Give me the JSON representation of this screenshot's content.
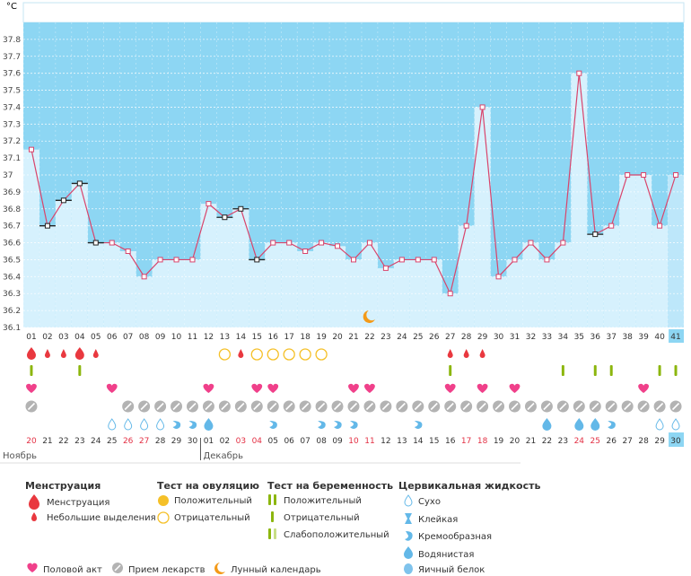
{
  "chart_data": {
    "type": "line",
    "ylabel": "°C",
    "ylim": [
      36.1,
      37.9
    ],
    "yticks": [
      "36.1",
      "36.2",
      "36.3",
      "36.4",
      "36.5",
      "36.6",
      "36.7",
      "36.8",
      "36.9",
      "37",
      "37.1",
      "37.2",
      "37.3",
      "37.4",
      "37.5",
      "37.6",
      "37.7",
      "37.8"
    ],
    "cycle_days": [
      "01",
      "02",
      "03",
      "04",
      "05",
      "06",
      "07",
      "08",
      "09",
      "10",
      "11",
      "12",
      "13",
      "14",
      "15",
      "16",
      "17",
      "18",
      "19",
      "20",
      "21",
      "22",
      "23",
      "24",
      "25",
      "26",
      "27",
      "28",
      "29",
      "30",
      "31",
      "32",
      "33",
      "34",
      "35",
      "36",
      "37",
      "38",
      "39",
      "40",
      "41"
    ],
    "temperatures": [
      37.15,
      36.7,
      36.85,
      36.95,
      36.6,
      36.6,
      36.55,
      36.4,
      36.5,
      36.5,
      36.5,
      36.83,
      36.75,
      36.8,
      36.5,
      36.6,
      36.6,
      36.55,
      36.6,
      36.58,
      36.5,
      36.6,
      36.45,
      36.5,
      36.5,
      36.5,
      36.3,
      36.7,
      37.4,
      36.4,
      36.5,
      36.6,
      36.5,
      36.6,
      37.6,
      36.65,
      36.7,
      37.0,
      37.0,
      36.7,
      37.0
    ],
    "highlighted_points": [
      1,
      2,
      3,
      4,
      12,
      13,
      14,
      35
    ],
    "current_day_index": 40,
    "dates": [
      "20",
      "21",
      "22",
      "23",
      "24",
      "25",
      "26",
      "27",
      "28",
      "29",
      "30",
      "01",
      "02",
      "03",
      "04",
      "05",
      "06",
      "07",
      "08",
      "09",
      "10",
      "11",
      "12",
      "13",
      "14",
      "15",
      "16",
      "17",
      "18",
      "19",
      "20",
      "21",
      "22",
      "23",
      "24",
      "25",
      "26",
      "27",
      "28",
      "29",
      "30"
    ],
    "weekend_dates": [
      0,
      6,
      7,
      13,
      14,
      20,
      21,
      27,
      28,
      34,
      35
    ],
    "months": [
      {
        "label": "Ноябрь",
        "start": 0
      },
      {
        "label": "Декабрь",
        "start": 11
      }
    ],
    "moon_day_index": 21,
    "rows": {
      "menstruation": {
        "0": "big",
        "1": "small",
        "2": "small",
        "3": "big",
        "4": "small",
        "13": "small",
        "26": "small",
        "27": "small",
        "28": "small"
      },
      "ovulation_test": [
        12,
        14,
        15,
        16,
        17,
        18
      ],
      "pregnancy_test": {
        "0": "negative",
        "3": "negative",
        "26": "negative",
        "33": "negative",
        "35": "negative",
        "36": "negative",
        "39": "negative",
        "40": "negative"
      },
      "intercourse": [
        0,
        5,
        11,
        14,
        15,
        20,
        21,
        26,
        28,
        30,
        38
      ],
      "medication": [
        0,
        6,
        7,
        8,
        9,
        10,
        11,
        12,
        13,
        14,
        15,
        16,
        17,
        18,
        19,
        20,
        21,
        22,
        23,
        24,
        25,
        26,
        27,
        28,
        29,
        30,
        31,
        32,
        33,
        34,
        35,
        36,
        37,
        38,
        39,
        40
      ],
      "cervical": {
        "5": "dry",
        "6": "dry",
        "7": "dry",
        "8": "dry",
        "9": "creamy",
        "10": "creamy",
        "11": "watery",
        "15": "creamy",
        "18": "creamy",
        "19": "creamy",
        "20": "creamy",
        "24": "creamy",
        "32": "watery",
        "34": "watery",
        "35": "watery",
        "36": "creamy",
        "39": "dry",
        "40": "dry"
      }
    }
  },
  "legend": {
    "menstruation": {
      "title": "Менструация",
      "items": [
        "Менструация",
        "Небольшие выделения"
      ]
    },
    "ovulation": {
      "title": "Тест на овуляцию",
      "items": [
        "Положительный",
        "Отрицательный"
      ]
    },
    "pregnancy": {
      "title": "Тест на беременность",
      "items": [
        "Положительный",
        "Отрицательный",
        "Слабоположительный"
      ]
    },
    "cervical": {
      "title": "Цервикальная жидкость",
      "items": [
        "Сухо",
        "Клейкая",
        "Кремообразная",
        "Водянистая",
        "Яичный белок"
      ]
    },
    "bottom": [
      "Половой акт",
      "Прием лекарств",
      "Лунный календарь"
    ]
  },
  "colors": {
    "background": "#8dd6f3",
    "bar": "#d6f1fd",
    "line": "#d9446b",
    "red": "#e9383f",
    "green": "#8cb60e",
    "yellow": "#f5c028",
    "pink": "#f0408a",
    "gray": "#b3b3b3",
    "blue": "#63b8e8",
    "orange": "#f49a18"
  }
}
